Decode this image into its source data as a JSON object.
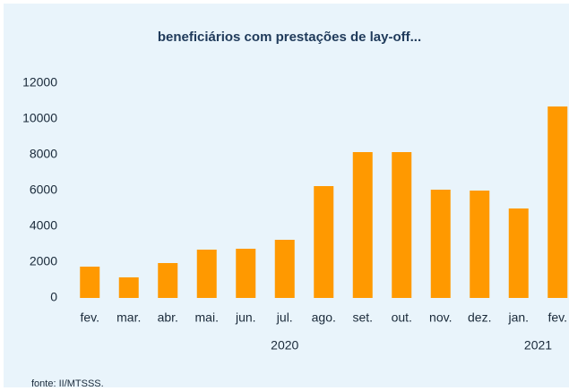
{
  "chart_data": {
    "type": "bar",
    "title": "beneficiários com prestações de lay-off...",
    "categories": [
      "fev.",
      "mar.",
      "abr.",
      "mai.",
      "jun.",
      "jul.",
      "ago.",
      "set.",
      "out.",
      "nov.",
      "dez.",
      "jan.",
      "fev."
    ],
    "values": [
      1750,
      1150,
      1950,
      2700,
      2750,
      3250,
      6250,
      8150,
      8150,
      6050,
      6000,
      5000,
      10700
    ],
    "x_groups": [
      {
        "label": "2020",
        "count": 11
      },
      {
        "label": "2021",
        "count": 2
      }
    ],
    "color": "#ff9900",
    "ylim": [
      0,
      12000
    ],
    "yticks": [
      0,
      2000,
      4000,
      6000,
      8000,
      10000,
      12000
    ],
    "grid": false,
    "source": "fonte: II/MTSSS."
  }
}
